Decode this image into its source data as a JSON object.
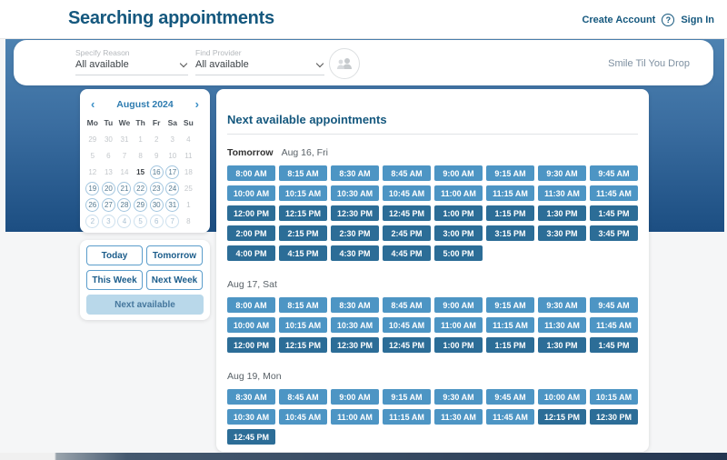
{
  "header": {
    "title": "Searching appointments",
    "create_account": "Create Account",
    "sign_in": "Sign In",
    "help_glyph": "?"
  },
  "filter_bar": {
    "reason": {
      "label": "Specify Reason",
      "value": "All available"
    },
    "provider": {
      "label": "Find Provider",
      "value": "All available"
    },
    "clinic_name": "Smile Til You Drop"
  },
  "calendar": {
    "month_title": "August 2024",
    "prev_glyph": "‹",
    "next_glyph": "›",
    "weekdays": [
      "Mo",
      "Tu",
      "We",
      "Th",
      "Fr",
      "Sa",
      "Su"
    ],
    "weeks": [
      [
        {
          "d": "29",
          "s": "muted"
        },
        {
          "d": "30",
          "s": "muted"
        },
        {
          "d": "31",
          "s": "muted"
        },
        {
          "d": "1",
          "s": "muted"
        },
        {
          "d": "2",
          "s": "muted"
        },
        {
          "d": "3",
          "s": "muted"
        },
        {
          "d": "4",
          "s": "muted"
        }
      ],
      [
        {
          "d": "5",
          "s": "muted"
        },
        {
          "d": "6",
          "s": "muted"
        },
        {
          "d": "7",
          "s": "muted"
        },
        {
          "d": "8",
          "s": "muted"
        },
        {
          "d": "9",
          "s": "muted"
        },
        {
          "d": "10",
          "s": "muted"
        },
        {
          "d": "11",
          "s": "muted"
        }
      ],
      [
        {
          "d": "12",
          "s": "muted"
        },
        {
          "d": "13",
          "s": "muted"
        },
        {
          "d": "14",
          "s": "muted"
        },
        {
          "d": "15",
          "s": "today"
        },
        {
          "d": "16",
          "s": "open"
        },
        {
          "d": "17",
          "s": "open"
        },
        {
          "d": "18",
          "s": "muted"
        }
      ],
      [
        {
          "d": "19",
          "s": "open"
        },
        {
          "d": "20",
          "s": "open"
        },
        {
          "d": "21",
          "s": "open"
        },
        {
          "d": "22",
          "s": "open"
        },
        {
          "d": "23",
          "s": "open"
        },
        {
          "d": "24",
          "s": "open"
        },
        {
          "d": "25",
          "s": "muted"
        }
      ],
      [
        {
          "d": "26",
          "s": "open"
        },
        {
          "d": "27",
          "s": "open"
        },
        {
          "d": "28",
          "s": "open"
        },
        {
          "d": "29",
          "s": "open"
        },
        {
          "d": "30",
          "s": "open"
        },
        {
          "d": "31",
          "s": "open"
        },
        {
          "d": "1",
          "s": "muted"
        }
      ],
      [
        {
          "d": "2",
          "s": "next"
        },
        {
          "d": "3",
          "s": "next"
        },
        {
          "d": "4",
          "s": "next"
        },
        {
          "d": "5",
          "s": "next"
        },
        {
          "d": "6",
          "s": "next"
        },
        {
          "d": "7",
          "s": "next"
        },
        {
          "d": "8",
          "s": "muted"
        }
      ]
    ],
    "buttons": {
      "today": "Today",
      "tomorrow": "Tomorrow",
      "this_week": "This Week",
      "next_week": "Next Week",
      "next_available": "Next available"
    }
  },
  "appointments": {
    "heading": "Next available appointments",
    "days": [
      {
        "prefix": "Tomorrow",
        "date": "Aug 16, Fri",
        "slots": [
          {
            "t": "8:00 AM",
            "p": "am"
          },
          {
            "t": "8:15 AM",
            "p": "am"
          },
          {
            "t": "8:30 AM",
            "p": "am"
          },
          {
            "t": "8:45 AM",
            "p": "am"
          },
          {
            "t": "9:00 AM",
            "p": "am"
          },
          {
            "t": "9:15 AM",
            "p": "am"
          },
          {
            "t": "9:30 AM",
            "p": "am"
          },
          {
            "t": "9:45 AM",
            "p": "am"
          },
          {
            "t": "10:00 AM",
            "p": "am"
          },
          {
            "t": "10:15 AM",
            "p": "am"
          },
          {
            "t": "10:30 AM",
            "p": "am"
          },
          {
            "t": "10:45 AM",
            "p": "am"
          },
          {
            "t": "11:00 AM",
            "p": "am"
          },
          {
            "t": "11:15 AM",
            "p": "am"
          },
          {
            "t": "11:30 AM",
            "p": "am"
          },
          {
            "t": "11:45 AM",
            "p": "am"
          },
          {
            "t": "12:00 PM",
            "p": "pm"
          },
          {
            "t": "12:15 PM",
            "p": "pm"
          },
          {
            "t": "12:30 PM",
            "p": "pm"
          },
          {
            "t": "12:45 PM",
            "p": "pm"
          },
          {
            "t": "1:00 PM",
            "p": "pm"
          },
          {
            "t": "1:15 PM",
            "p": "pm"
          },
          {
            "t": "1:30 PM",
            "p": "pm"
          },
          {
            "t": "1:45 PM",
            "p": "pm"
          },
          {
            "t": "2:00 PM",
            "p": "pm"
          },
          {
            "t": "2:15 PM",
            "p": "pm"
          },
          {
            "t": "2:30 PM",
            "p": "pm"
          },
          {
            "t": "2:45 PM",
            "p": "pm"
          },
          {
            "t": "3:00 PM",
            "p": "pm"
          },
          {
            "t": "3:15 PM",
            "p": "pm"
          },
          {
            "t": "3:30 PM",
            "p": "pm"
          },
          {
            "t": "3:45 PM",
            "p": "pm"
          },
          {
            "t": "4:00 PM",
            "p": "pm"
          },
          {
            "t": "4:15 PM",
            "p": "pm"
          },
          {
            "t": "4:30 PM",
            "p": "pm"
          },
          {
            "t": "4:45 PM",
            "p": "pm"
          },
          {
            "t": "5:00 PM",
            "p": "pm"
          }
        ]
      },
      {
        "prefix": "",
        "date": "Aug 17, Sat",
        "slots": [
          {
            "t": "8:00 AM",
            "p": "am"
          },
          {
            "t": "8:15 AM",
            "p": "am"
          },
          {
            "t": "8:30 AM",
            "p": "am"
          },
          {
            "t": "8:45 AM",
            "p": "am"
          },
          {
            "t": "9:00 AM",
            "p": "am"
          },
          {
            "t": "9:15 AM",
            "p": "am"
          },
          {
            "t": "9:30 AM",
            "p": "am"
          },
          {
            "t": "9:45 AM",
            "p": "am"
          },
          {
            "t": "10:00 AM",
            "p": "am"
          },
          {
            "t": "10:15 AM",
            "p": "am"
          },
          {
            "t": "10:30 AM",
            "p": "am"
          },
          {
            "t": "10:45 AM",
            "p": "am"
          },
          {
            "t": "11:00 AM",
            "p": "am"
          },
          {
            "t": "11:15 AM",
            "p": "am"
          },
          {
            "t": "11:30 AM",
            "p": "am"
          },
          {
            "t": "11:45 AM",
            "p": "am"
          },
          {
            "t": "12:00 PM",
            "p": "pm"
          },
          {
            "t": "12:15 PM",
            "p": "pm"
          },
          {
            "t": "12:30 PM",
            "p": "pm"
          },
          {
            "t": "12:45 PM",
            "p": "pm"
          },
          {
            "t": "1:00 PM",
            "p": "pm"
          },
          {
            "t": "1:15 PM",
            "p": "pm"
          },
          {
            "t": "1:30 PM",
            "p": "pm"
          },
          {
            "t": "1:45 PM",
            "p": "pm"
          }
        ]
      },
      {
        "prefix": "",
        "date": "Aug 19, Mon",
        "slots": [
          {
            "t": "8:30 AM",
            "p": "am"
          },
          {
            "t": "8:45 AM",
            "p": "am"
          },
          {
            "t": "9:00 AM",
            "p": "am"
          },
          {
            "t": "9:15 AM",
            "p": "am"
          },
          {
            "t": "9:30 AM",
            "p": "am"
          },
          {
            "t": "9:45 AM",
            "p": "am"
          },
          {
            "t": "10:00 AM",
            "p": "am"
          },
          {
            "t": "10:15 AM",
            "p": "am"
          },
          {
            "t": "10:30 AM",
            "p": "am"
          },
          {
            "t": "10:45 AM",
            "p": "am"
          },
          {
            "t": "11:00 AM",
            "p": "am"
          },
          {
            "t": "11:15 AM",
            "p": "am"
          },
          {
            "t": "11:30 AM",
            "p": "am"
          },
          {
            "t": "11:45 AM",
            "p": "am"
          },
          {
            "t": "12:15 PM",
            "p": "pm"
          },
          {
            "t": "12:30 PM",
            "p": "pm"
          },
          {
            "t": "12:45 PM",
            "p": "pm"
          }
        ]
      }
    ]
  },
  "colors": {
    "brand_dark_blue": "#15587e",
    "hero_top": "#4d82b1",
    "hero_bottom": "#1c4e82",
    "slot_am": "#4d95c4",
    "slot_pm": "#2c6d97",
    "next_available_bg": "#b9d8ea",
    "quick_button_border": "#5b9dcb",
    "calendar_circle_border": "#a3c6df",
    "footer_navy": "#243650"
  }
}
